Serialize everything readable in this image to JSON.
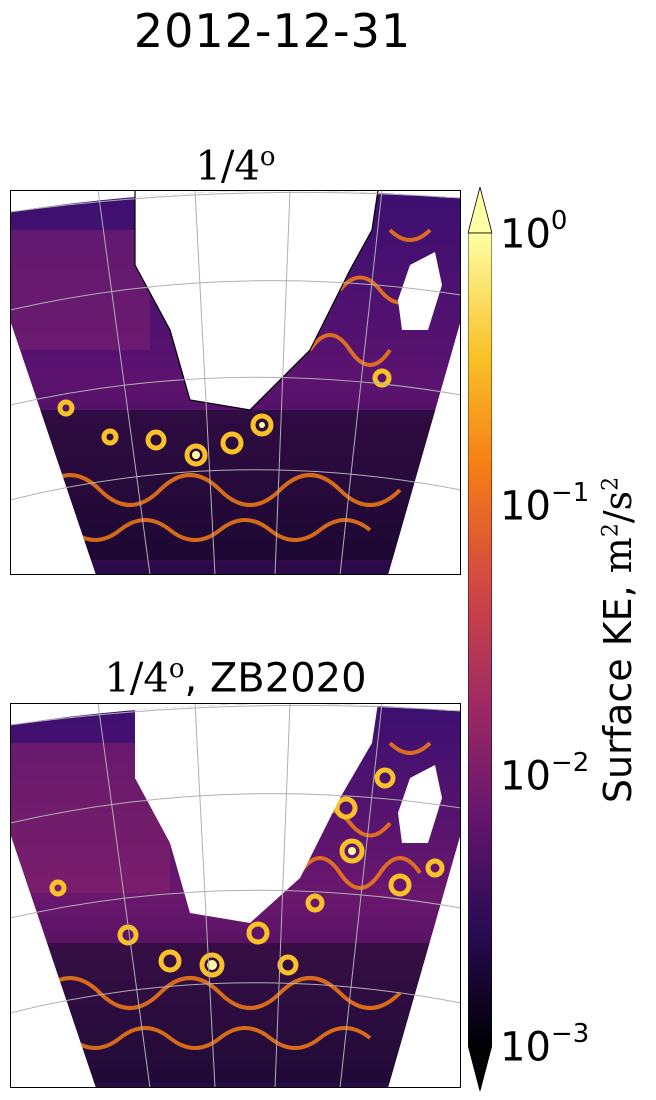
{
  "suptitle": "2012-12-31",
  "panels": [
    {
      "title_math": "1/4",
      "title_sup": "o",
      "title_suffix": ""
    },
    {
      "title_math": "1/4",
      "title_sup": "o",
      "title_suffix": ", ZB2020"
    }
  ],
  "colorbar": {
    "label_prefix": "Surface KE, ",
    "label_unit": "m",
    "label_unit_sup": "2",
    "label_unit_mid": "/s",
    "label_unit_sup2": "2",
    "ticks": [
      {
        "base": "10",
        "exp": "0"
      },
      {
        "base": "10",
        "exp": "−1"
      },
      {
        "base": "10",
        "exp": "−2"
      },
      {
        "base": "10",
        "exp": "−3"
      }
    ],
    "colormap": "inferno",
    "colors": [
      "#000004",
      "#280b54",
      "#65156e",
      "#9f2a63",
      "#d44842",
      "#f57d15",
      "#fac228",
      "#fcffa4"
    ]
  },
  "chart_data": {
    "type": "heatmap",
    "title": "2012-12-31",
    "panels": [
      {
        "title": "1/4°"
      },
      {
        "title": "1/4°, ZB2020"
      }
    ],
    "colorbar": {
      "label": "Surface KE, m²/s²",
      "scale": "log",
      "range": [
        0.001,
        1
      ],
      "ticks": [
        1,
        0.1,
        0.01,
        0.001
      ],
      "extend": "both"
    },
    "map_features": [
      "land mask (white)",
      "coastline",
      "graticule"
    ],
    "grid": true
  }
}
